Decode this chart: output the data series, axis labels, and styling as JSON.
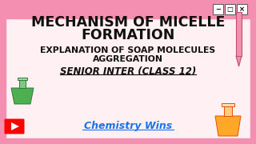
{
  "bg_color": "#fff0f3",
  "top_bar_color": "#f48fb1",
  "border_color": "#f48fb1",
  "title_line1": "MECHANISM OF MICELLE",
  "title_line2": "FORMATION",
  "subtitle_line1": "EXPLANATION OF SOAP MOLECULES",
  "subtitle_line2": "AGGREGATION",
  "italic_line": "SENIOR INTER (CLASS 12)",
  "link_text": "Chemistry Wins",
  "title_color": "#111111",
  "subtitle_color": "#111111",
  "italic_color": "#111111",
  "link_color": "#1a73e8",
  "top_bar_height": 0.13,
  "win_btn_color": "#ffffff",
  "win_border_color": "#555555",
  "btn_labels": [
    "−",
    "□",
    "×"
  ]
}
